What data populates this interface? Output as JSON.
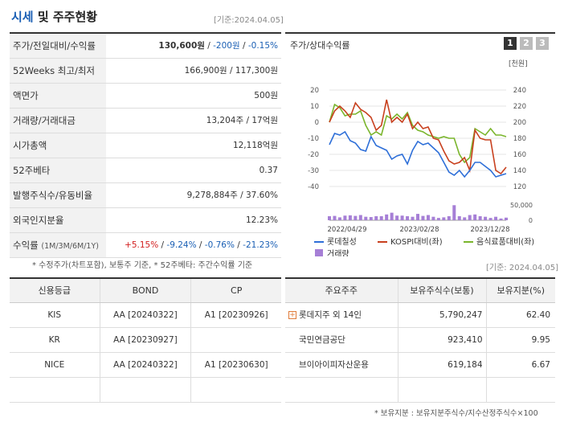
{
  "header": {
    "title_a": "시세",
    "title_b": "및 주주현황",
    "basis": "[기준:2024.04.05]"
  },
  "price": {
    "rows": [
      {
        "key": "주가/전일대비/수익률",
        "v1": "130,600원",
        "v2": "-200원",
        "v3": "-0.15%"
      },
      {
        "key": "52Weeks 최고/최저",
        "value": "166,900원 / 117,300원"
      },
      {
        "key": "액면가",
        "value": "500원"
      },
      {
        "key": "거래량/거래대금",
        "value": "13,204주 / 17억원"
      },
      {
        "key": "시가총액",
        "value": "12,118억원"
      },
      {
        "key": "52주베타",
        "value": "0.37"
      },
      {
        "key": "발행주식수/유동비율",
        "value": "9,278,884주 / 37.60%"
      },
      {
        "key": "외국인지분율",
        "value": "12.23%"
      }
    ],
    "returns_key": "수익률",
    "returns_sub": "(1M/3M/6M/1Y)",
    "returns": [
      "+5.15%",
      "-9.24%",
      "-0.76%",
      "-21.23%"
    ],
    "footnote": "* 수정주가(차트포함), 보통주 기준, * 52주베타: 주간수익률 기준"
  },
  "chart": {
    "title": "주가/상대수익률",
    "tabs": [
      "1",
      "2",
      "3"
    ],
    "unit_right": "[천원]",
    "left_ticks": [
      "20",
      "10",
      "0",
      "-10",
      "-20",
      "-30",
      "-40"
    ],
    "right_ticks": [
      "240",
      "220",
      "200",
      "180",
      "160",
      "140",
      "120"
    ],
    "vol_ticks": [
      "50,000",
      "0"
    ],
    "x_labels": [
      "2022/04/29",
      "2023/02/28",
      "2023/12/28"
    ],
    "legend": [
      "롯데칠성",
      "KOSPI대비(좌)",
      "음식료품대비(좌)",
      "거래량"
    ],
    "colors": {
      "price": "#2e6fd8",
      "kospi": "#c8401e",
      "food": "#7ab52c",
      "volume": "#a67fd6"
    }
  },
  "chart_data": {
    "type": "line",
    "series": [
      {
        "name": "롯데칠성",
        "axis": "right",
        "values": [
          172,
          186,
          184,
          188,
          177,
          174,
          166,
          164,
          182,
          171,
          168,
          165,
          154,
          158,
          160,
          148,
          165,
          176,
          172,
          174,
          168,
          162,
          150,
          138,
          134,
          140,
          132,
          140,
          150,
          150,
          145,
          140,
          132,
          134,
          136
        ]
      },
      {
        "name": "KOSPI대비(좌)",
        "axis": "left",
        "values": [
          0,
          7,
          10,
          7,
          3,
          12,
          8,
          6,
          3,
          -5,
          -2,
          14,
          0,
          3,
          0,
          5,
          -4,
          0,
          -4,
          -3,
          -10,
          -11,
          -18,
          -24,
          -26,
          -25,
          -22,
          -30,
          -5,
          -10,
          -11,
          -11,
          -30,
          -32,
          -28
        ]
      },
      {
        "name": "음식료품대비(좌)",
        "axis": "left",
        "values": [
          0,
          11,
          9,
          4,
          5,
          5,
          7,
          -2,
          -8,
          -6,
          -8,
          4,
          2,
          5,
          2,
          6,
          -2,
          -5,
          -6,
          -8,
          -9,
          -10,
          -9,
          -10,
          -10,
          -20,
          -25,
          -22,
          -4,
          -6,
          -8,
          -4,
          -8,
          -8,
          -9
        ]
      },
      {
        "name": "거래량",
        "axis": "volume",
        "values": [
          14000,
          15000,
          10000,
          16000,
          17000,
          15000,
          18000,
          12000,
          11000,
          14000,
          14000,
          20000,
          26000,
          16000,
          16000,
          14000,
          12000,
          22000,
          15000,
          18000,
          12000,
          8000,
          10000,
          14000,
          52000,
          14000,
          10000,
          18000,
          20000,
          14000,
          12000,
          8000,
          12000,
          6000,
          9000
        ]
      }
    ],
    "x_range": [
      "2022/04/29",
      "2024/04/05"
    ],
    "ylim_left": [
      -40,
      20
    ],
    "ylim_right": [
      120,
      240
    ],
    "ylim_volume": [
      0,
      50000
    ]
  },
  "credit": {
    "headers": [
      "신용등급",
      "BOND",
      "CP"
    ],
    "rows": [
      [
        "KIS",
        "AA [20240322]",
        "A1 [20230926]"
      ],
      [
        "KR",
        "AA [20230927]",
        ""
      ],
      [
        "NICE",
        "AA [20240322]",
        "A1 [20230630]"
      ],
      [
        "",
        "",
        ""
      ]
    ]
  },
  "holders": {
    "basis": "[기준: 2024.04.05]",
    "headers": [
      "주요주주",
      "보유주식수(보통)",
      "보유지분(%)"
    ],
    "rows": [
      {
        "name": "롯데지주 외 14인",
        "shares": "5,790,247",
        "pct": "62.40",
        "expand": true
      },
      {
        "name": "국민연금공단",
        "shares": "923,410",
        "pct": "9.95"
      },
      {
        "name": "브이아이피자산운용",
        "shares": "619,184",
        "pct": "6.67"
      },
      {
        "name": "",
        "shares": "",
        "pct": ""
      }
    ],
    "footnote": "* 보유지분 : 보유지분주식수/지수산정주식수×100"
  }
}
